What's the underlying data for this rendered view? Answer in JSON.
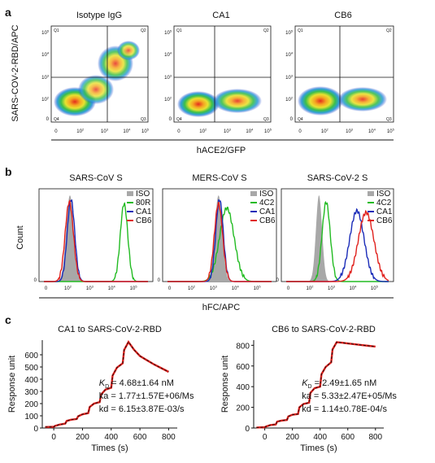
{
  "panel_letters": {
    "a": "a",
    "b": "b",
    "c": "c"
  },
  "panel_a": {
    "ylabel": "SARS-COV-2-RBD/APC",
    "xlabel": "hACE2/GFP",
    "quadrants": [
      "Q1",
      "Q2",
      "Q4",
      "Q3"
    ],
    "titles": [
      "Isotype IgG",
      "CA1",
      "CB6"
    ],
    "y_ticks": [
      "10^5",
      "10^4",
      "10^3",
      "10^2",
      "0"
    ],
    "x_ticks": [
      "0",
      "10^2",
      "10^3",
      "10^4",
      "10^5"
    ]
  },
  "panel_b": {
    "ylabel": "Count",
    "xlabel": "hFC/APC",
    "x_ticks": [
      "0",
      "10^2",
      "10^3",
      "10^4",
      "10^5"
    ],
    "plots": [
      {
        "title": "SARS-CoV S",
        "legend": [
          "ISO",
          "80R",
          "CA1",
          "CB6"
        ]
      },
      {
        "title": "MERS-CoV S",
        "legend": [
          "ISO",
          "4C2",
          "CA1",
          "CB6"
        ]
      },
      {
        "title": "SARS-CoV-2 S",
        "legend": [
          "ISO",
          "4C2",
          "CA1",
          "CB6"
        ]
      }
    ],
    "colors": {
      "iso": "#a8a8a8",
      "control": "#22bb22",
      "ca1": "#1a2bb8",
      "cb6": "#e0201c"
    }
  },
  "chart_data": [
    {
      "type": "line",
      "title": "CA1 to SARS-CoV-2-RBD",
      "xlabel": "Times (s)",
      "ylabel": "Response unit",
      "xlim": [
        -80,
        860
      ],
      "ylim": [
        0,
        720
      ],
      "x_ticks": [
        0,
        200,
        400,
        600,
        800
      ],
      "y_ticks": [
        0,
        100,
        200,
        300,
        400,
        500,
        600
      ],
      "annotation": {
        "kd_sym": "K",
        "kd_sub": "D",
        "kd_val": " = 4.68±1.64 nM",
        "ka": "ka = 1.77±1.57E+06/Ms",
        "kd": "kd = 6.15±3.87E-03/s"
      },
      "series": [
        {
          "color": "#e0201c",
          "x": [
            -60,
            0,
            10,
            40,
            80,
            90,
            120,
            160,
            170,
            200,
            240,
            250,
            280,
            320,
            330,
            360,
            400,
            410,
            440,
            480,
            490,
            520,
            560,
            600,
            650,
            700,
            750,
            800
          ],
          "y": [
            8,
            10,
            18,
            28,
            36,
            58,
            68,
            74,
            96,
            112,
            122,
            172,
            200,
            212,
            275,
            315,
            330,
            430,
            495,
            530,
            640,
            705,
            640,
            590,
            555,
            520,
            490,
            460
          ]
        }
      ]
    },
    {
      "type": "line",
      "title": "CB6 to SARS-CoV-2-RBD",
      "xlabel": "Times (s)",
      "ylabel": "Response unit",
      "xlim": [
        -80,
        860
      ],
      "ylim": [
        0,
        850
      ],
      "x_ticks": [
        0,
        200,
        400,
        600,
        800
      ],
      "y_ticks": [
        0,
        200,
        400,
        600,
        800
      ],
      "annotation": {
        "kd_sym": "K",
        "kd_sub": "D",
        "kd_val": " = 2.49±1.65 nM",
        "ka": "ka = 5.33±2.47E+05/Ms",
        "kd": "kd = 1.14±0.78E-04/s"
      },
      "series": [
        {
          "color": "#e0201c",
          "x": [
            -60,
            0,
            10,
            40,
            80,
            90,
            120,
            160,
            170,
            200,
            240,
            250,
            280,
            320,
            330,
            360,
            400,
            410,
            440,
            480,
            490,
            520,
            560,
            600,
            650,
            700,
            750,
            800
          ],
          "y": [
            5,
            8,
            15,
            28,
            35,
            62,
            72,
            78,
            112,
            128,
            135,
            200,
            232,
            245,
            340,
            385,
            400,
            520,
            590,
            635,
            760,
            830,
            825,
            818,
            810,
            802,
            795,
            788
          ]
        }
      ]
    }
  ]
}
